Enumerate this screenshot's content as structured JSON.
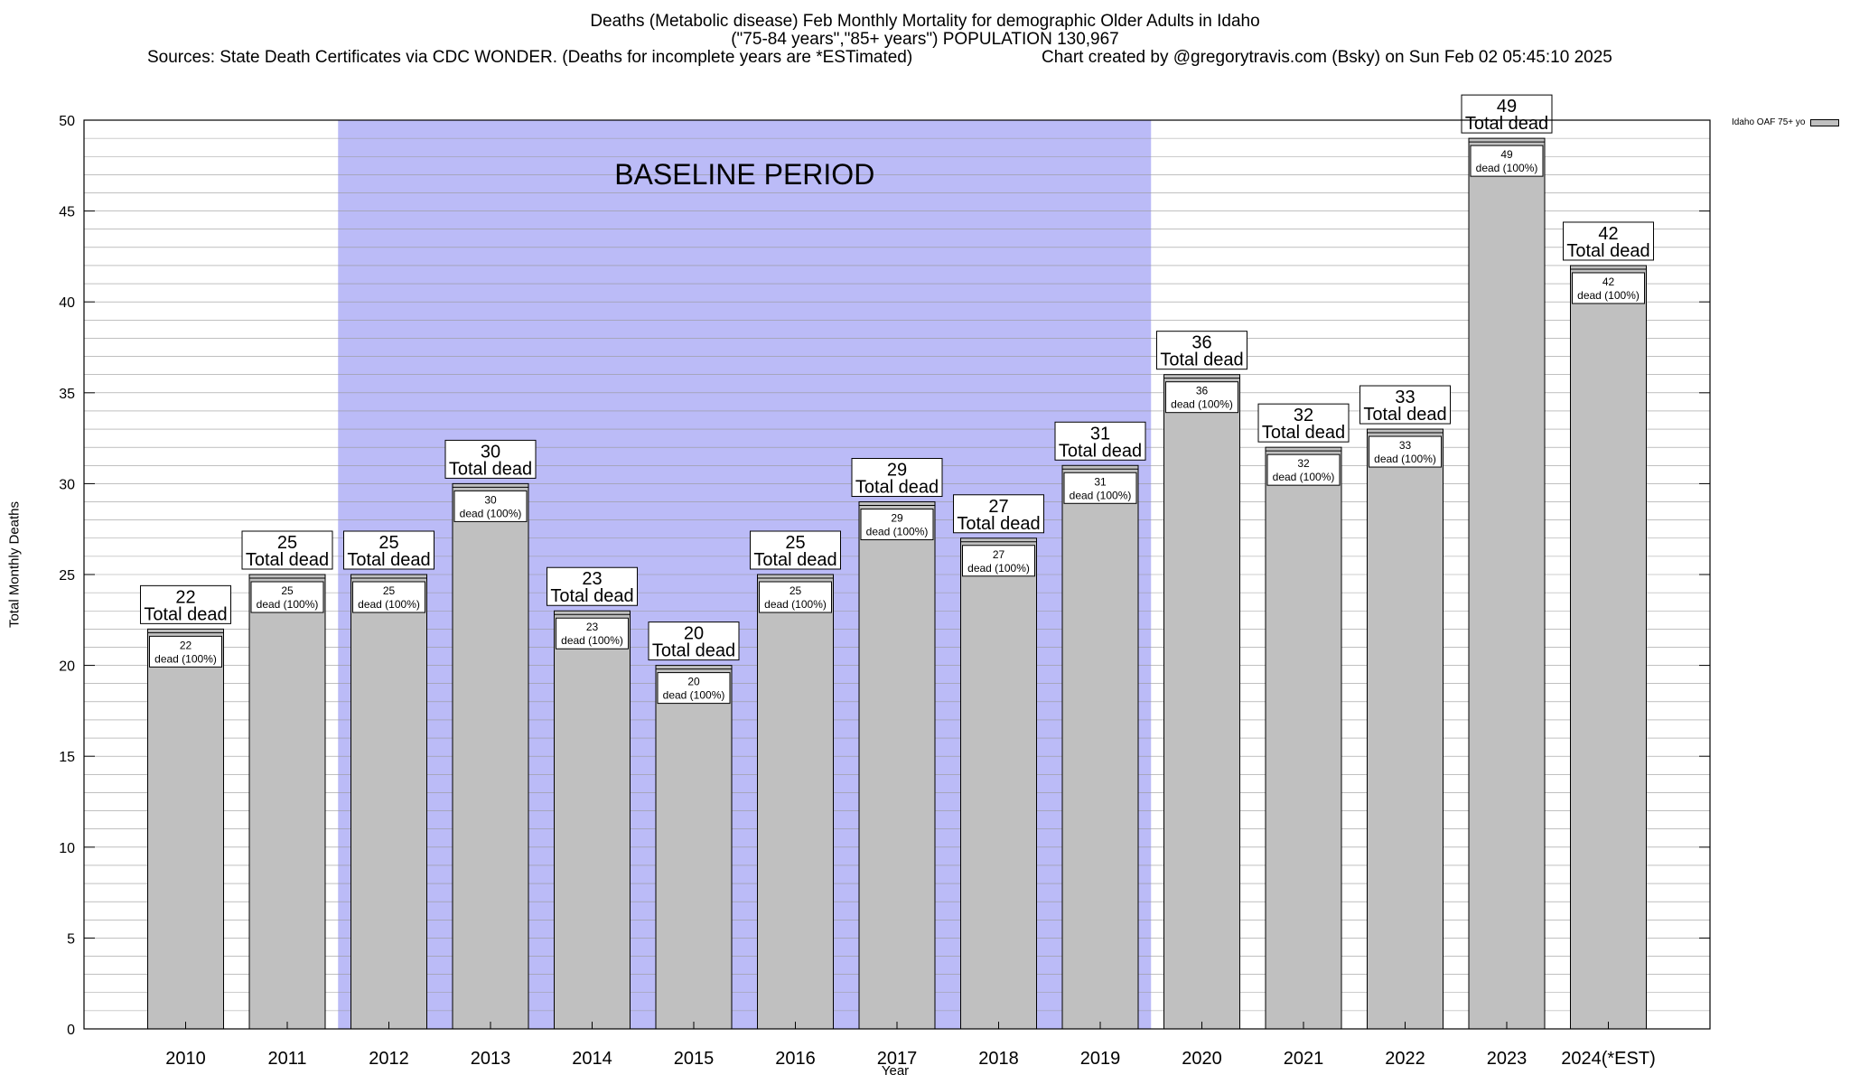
{
  "title": {
    "line1": "Deaths (Metabolic disease) Feb Monthly Mortality for demographic Older Adults in Idaho",
    "line2": "(\"75-84 years\",\"85+ years\") POPULATION 130,967",
    "sources": "Sources: State Death Certificates via CDC WONDER. (Deaths for incomplete years are *ESTimated)",
    "credit": "Chart created by @gregorytravis.com (Bsky) on Sun Feb 02 05:45:10 2025"
  },
  "chart_data": {
    "type": "bar",
    "categories": [
      "2010",
      "2011",
      "2012",
      "2013",
      "2014",
      "2015",
      "2016",
      "2017",
      "2018",
      "2019",
      "2020",
      "2021",
      "2022",
      "2023",
      "2024(*EST)"
    ],
    "series": [
      {
        "name": "Idaho OAF 75+ yo",
        "values": [
          22,
          25,
          25,
          30,
          23,
          20,
          25,
          29,
          27,
          31,
          36,
          32,
          33,
          49,
          42
        ],
        "color": "#c0c0c0"
      }
    ],
    "xlabel": "Year",
    "ylabel": "Total Monthly Deaths",
    "ylim": [
      0,
      50
    ],
    "yticks": [
      0,
      5,
      10,
      15,
      20,
      25,
      30,
      35,
      40,
      45,
      50
    ],
    "grid": true,
    "legend_position": "top-right",
    "baseline_period": {
      "label": "BASELINE PERIOD",
      "start_category": "2012",
      "end_category": "2019",
      "color": "#bbbbf7"
    },
    "annotation_top_text": "Total dead",
    "annotation_inner_text": "dead (100%)"
  }
}
